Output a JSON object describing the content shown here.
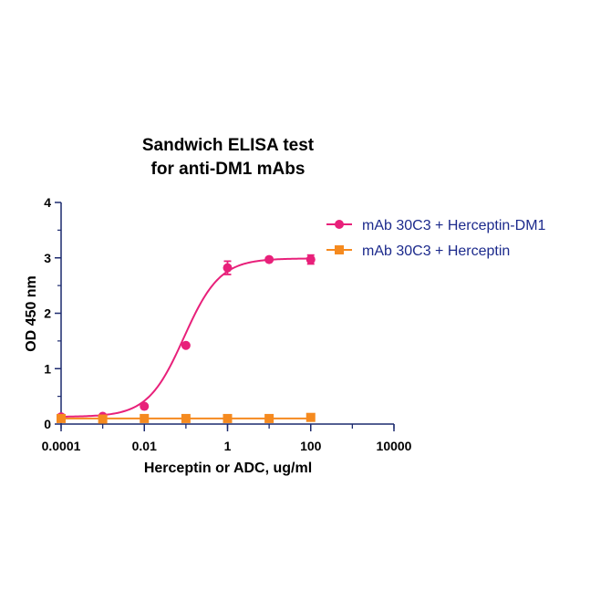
{
  "chart_data": {
    "type": "scatter",
    "title": [
      "Sandwich ELISA test",
      "for anti-DM1 mAbs"
    ],
    "xlabel": "Herceptin or ADC, ug/ml",
    "ylabel": "OD 450 nm",
    "xscale": "log",
    "xlim": [
      0.0001,
      10000
    ],
    "ylim": [
      0,
      4
    ],
    "xticks": [
      "0.0001",
      "0.01",
      "1",
      "100",
      "10000"
    ],
    "yticks": [
      "0",
      "1",
      "2",
      "3",
      "4"
    ],
    "legend_position": "top-right",
    "grid": false,
    "series": [
      {
        "name": "mAb 30C3 + Herceptin-DM1",
        "color": "#e8207a",
        "marker": "circle",
        "x": [
          0.0001,
          0.001,
          0.01,
          0.1,
          1,
          10,
          100
        ],
        "y": [
          0.13,
          0.14,
          0.32,
          1.42,
          2.82,
          2.97,
          2.97
        ],
        "error": [
          0,
          0,
          0,
          0,
          0.12,
          0,
          0.08
        ],
        "fit": {
          "bottom": 0.13,
          "top": 2.99,
          "logEC50": -1.05,
          "hill": 1.0
        }
      },
      {
        "name": "mAb 30C3 + Herceptin",
        "color": "#f58a1f",
        "marker": "square",
        "x": [
          0.0001,
          0.001,
          0.01,
          0.1,
          1,
          10,
          100
        ],
        "y": [
          0.1,
          0.09,
          0.1,
          0.1,
          0.1,
          0.1,
          0.12
        ],
        "error": [
          0,
          0,
          0,
          0,
          0,
          0,
          0
        ],
        "fit": {
          "bottom": 0.1,
          "top": 0.1,
          "logEC50": 0,
          "hill": 1.0
        }
      }
    ]
  }
}
